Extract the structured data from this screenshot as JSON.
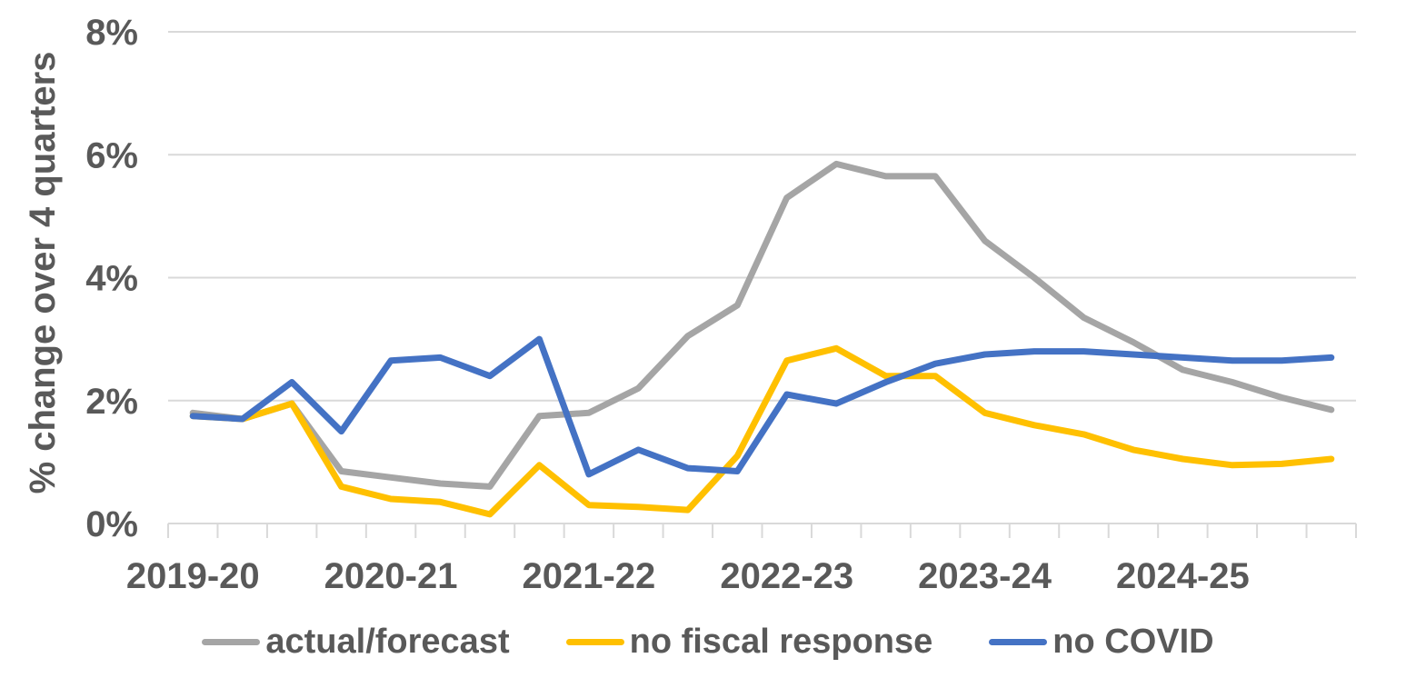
{
  "chart_data": {
    "type": "line",
    "title": "",
    "xlabel": "",
    "ylabel": "% change over 4 quarters",
    "x_unit": "fiscal quarter",
    "x_tick_labels": [
      "2019-20",
      "2020-21",
      "2021-22",
      "2022-23",
      "2023-24",
      "2024-25"
    ],
    "x_label_quarter_indices": [
      0,
      4,
      8,
      12,
      16,
      20
    ],
    "quarters_per_year": 4,
    "n_points": 24,
    "y_axis": {
      "min": 0,
      "max": 8,
      "step": 2,
      "tick_labels": [
        "0%",
        "2%",
        "4%",
        "6%",
        "8%"
      ]
    },
    "grid": "horizontal",
    "legend_position": "bottom",
    "series": [
      {
        "name": "actual/forecast",
        "color": "#A5A5A5",
        "values": [
          1.8,
          1.7,
          1.95,
          0.85,
          0.75,
          0.65,
          0.6,
          1.75,
          1.8,
          2.2,
          3.05,
          3.55,
          5.3,
          5.85,
          5.65,
          5.65,
          4.6,
          4.0,
          3.35,
          2.95,
          2.5,
          2.3,
          2.05,
          1.85
        ]
      },
      {
        "name": "no fiscal response",
        "color": "#FFC000",
        "values": [
          1.75,
          1.7,
          1.95,
          0.6,
          0.4,
          0.35,
          0.15,
          0.95,
          0.3,
          0.27,
          0.22,
          1.1,
          2.65,
          2.85,
          2.4,
          2.4,
          1.8,
          1.6,
          1.45,
          1.2,
          1.05,
          0.95,
          0.97,
          1.05
        ]
      },
      {
        "name": "no COVID",
        "color": "#4472C4",
        "values": [
          1.75,
          1.7,
          2.3,
          1.5,
          2.65,
          2.7,
          2.4,
          3.0,
          0.8,
          1.2,
          0.9,
          0.85,
          2.1,
          1.95,
          2.3,
          2.6,
          2.75,
          2.8,
          2.8,
          2.75,
          2.7,
          2.65,
          2.65,
          2.7
        ]
      }
    ]
  },
  "colors": {
    "text": "#595959",
    "gridline": "#D9D9D9",
    "background": "#FFFFFF"
  }
}
